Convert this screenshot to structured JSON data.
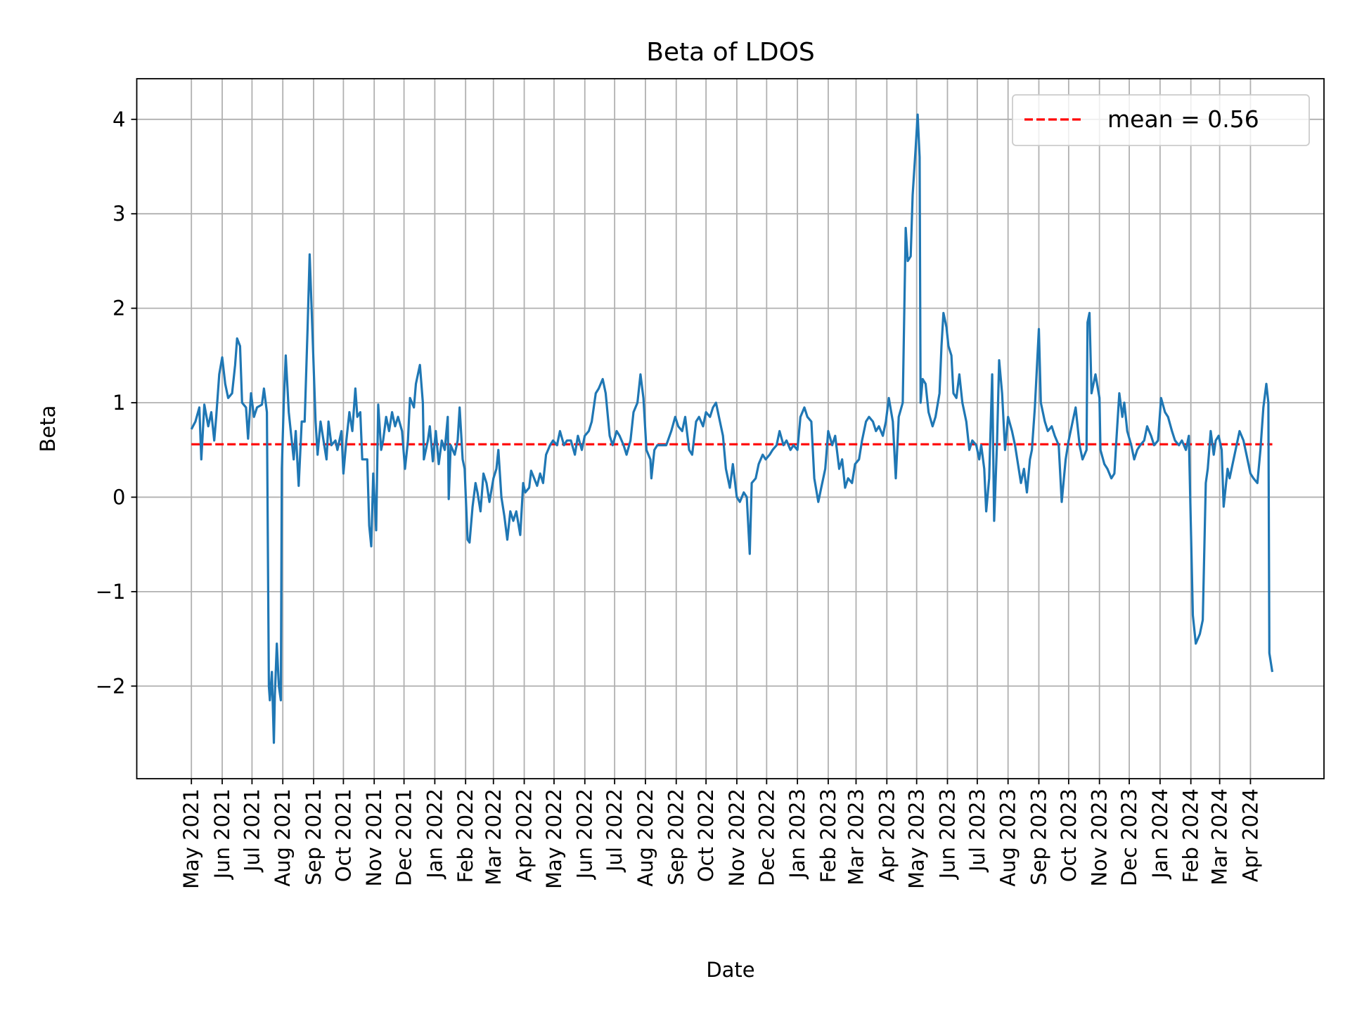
{
  "chart_data": {
    "type": "line",
    "title": "Beta of LDOS",
    "xlabel": "Date",
    "ylabel": "Beta",
    "ylim": [
      -2.98,
      4.43
    ],
    "xlim": [
      "2021-03-07",
      "2024-06-14"
    ],
    "grid": true,
    "legend_placement": "top-right",
    "yticks": [
      -2,
      -1,
      0,
      1,
      2,
      3,
      4
    ],
    "ytick_labels": [
      "−2",
      "−1",
      "0",
      "1",
      "2",
      "3",
      "4"
    ],
    "xtick_labels": [
      "May 2021",
      "Jun 2021",
      "Jul 2021",
      "Aug 2021",
      "Sep 2021",
      "Oct 2021",
      "Nov 2021",
      "Dec 2021",
      "Jan 2022",
      "Feb 2022",
      "Mar 2022",
      "Apr 2022",
      "May 2022",
      "Jun 2022",
      "Jul 2022",
      "Aug 2022",
      "Sep 2022",
      "Oct 2022",
      "Nov 2022",
      "Dec 2022",
      "Jan 2023",
      "Feb 2023",
      "Mar 2023",
      "Apr 2023",
      "May 2023",
      "Jun 2023",
      "Jul 2023",
      "Aug 2023",
      "Sep 2023",
      "Oct 2023",
      "Nov 2023",
      "Dec 2023",
      "Jan 2024",
      "Feb 2024",
      "Mar 2024",
      "Apr 2024"
    ],
    "mean": {
      "value": 0.56,
      "label": "mean = 0.56",
      "color": "#ff0000",
      "style": "dashed"
    },
    "series_color": "#1f77b4",
    "points": [
      [
        "2021-05-01",
        0.72
      ],
      [
        "2021-05-05",
        0.8
      ],
      [
        "2021-05-09",
        0.95
      ],
      [
        "2021-05-11",
        0.4
      ],
      [
        "2021-05-14",
        0.98
      ],
      [
        "2021-05-18",
        0.75
      ],
      [
        "2021-05-21",
        0.9
      ],
      [
        "2021-05-24",
        0.6
      ],
      [
        "2021-05-26",
        0.85
      ],
      [
        "2021-05-29",
        1.3
      ],
      [
        "2021-06-01",
        1.48
      ],
      [
        "2021-06-04",
        1.2
      ],
      [
        "2021-06-07",
        1.05
      ],
      [
        "2021-06-11",
        1.1
      ],
      [
        "2021-06-14",
        1.4
      ],
      [
        "2021-06-16",
        1.68
      ],
      [
        "2021-06-19",
        1.6
      ],
      [
        "2021-06-21",
        1.0
      ],
      [
        "2021-06-25",
        0.95
      ],
      [
        "2021-06-27",
        0.62
      ],
      [
        "2021-06-30",
        1.1
      ],
      [
        "2021-07-03",
        0.85
      ],
      [
        "2021-07-06",
        0.95
      ],
      [
        "2021-07-11",
        0.98
      ],
      [
        "2021-07-13",
        1.15
      ],
      [
        "2021-07-16",
        0.9
      ],
      [
        "2021-07-18",
        -2.0
      ],
      [
        "2021-07-19",
        -2.15
      ],
      [
        "2021-07-21",
        -1.85
      ],
      [
        "2021-07-23",
        -2.6
      ],
      [
        "2021-07-24",
        -2.1
      ],
      [
        "2021-07-26",
        -1.55
      ],
      [
        "2021-07-28",
        -2.0
      ],
      [
        "2021-07-30",
        -2.15
      ],
      [
        "2021-07-31",
        0.3
      ],
      [
        "2021-08-02",
        1.0
      ],
      [
        "2021-08-04",
        1.5
      ],
      [
        "2021-08-07",
        0.9
      ],
      [
        "2021-08-09",
        0.7
      ],
      [
        "2021-08-12",
        0.4
      ],
      [
        "2021-08-14",
        0.7
      ],
      [
        "2021-08-17",
        0.12
      ],
      [
        "2021-08-20",
        0.8
      ],
      [
        "2021-08-23",
        0.8
      ],
      [
        "2021-08-26",
        1.8
      ],
      [
        "2021-08-28",
        2.57
      ],
      [
        "2021-08-31",
        1.7
      ],
      [
        "2021-09-03",
        0.8
      ],
      [
        "2021-09-05",
        0.45
      ],
      [
        "2021-09-08",
        0.8
      ],
      [
        "2021-09-11",
        0.6
      ],
      [
        "2021-09-14",
        0.4
      ],
      [
        "2021-09-16",
        0.8
      ],
      [
        "2021-09-19",
        0.55
      ],
      [
        "2021-09-23",
        0.6
      ],
      [
        "2021-09-25",
        0.5
      ],
      [
        "2021-09-29",
        0.7
      ],
      [
        "2021-10-01",
        0.25
      ],
      [
        "2021-10-04",
        0.6
      ],
      [
        "2021-10-07",
        0.9
      ],
      [
        "2021-10-10",
        0.7
      ],
      [
        "2021-10-13",
        1.15
      ],
      [
        "2021-10-15",
        0.85
      ],
      [
        "2021-10-18",
        0.9
      ],
      [
        "2021-10-20",
        0.4
      ],
      [
        "2021-10-25",
        0.4
      ],
      [
        "2021-10-27",
        -0.3
      ],
      [
        "2021-10-29",
        -0.52
      ],
      [
        "2021-10-31",
        0.25
      ],
      [
        "2021-11-03",
        -0.35
      ],
      [
        "2021-11-05",
        0.98
      ],
      [
        "2021-11-08",
        0.5
      ],
      [
        "2021-11-10",
        0.6
      ],
      [
        "2021-11-13",
        0.85
      ],
      [
        "2021-11-16",
        0.7
      ],
      [
        "2021-11-19",
        0.9
      ],
      [
        "2021-11-22",
        0.75
      ],
      [
        "2021-11-25",
        0.85
      ],
      [
        "2021-11-29",
        0.7
      ],
      [
        "2021-12-02",
        0.3
      ],
      [
        "2021-12-05",
        0.6
      ],
      [
        "2021-12-07",
        1.05
      ],
      [
        "2021-12-11",
        0.95
      ],
      [
        "2021-12-13",
        1.2
      ],
      [
        "2021-12-17",
        1.4
      ],
      [
        "2021-12-20",
        1.0
      ],
      [
        "2021-12-21",
        0.4
      ],
      [
        "2021-12-25",
        0.6
      ],
      [
        "2021-12-27",
        0.75
      ],
      [
        "2021-12-30",
        0.38
      ],
      [
        "2022-01-02",
        0.7
      ],
      [
        "2022-01-05",
        0.35
      ],
      [
        "2022-01-08",
        0.6
      ],
      [
        "2022-01-11",
        0.5
      ],
      [
        "2022-01-14",
        0.85
      ],
      [
        "2022-01-15",
        -0.02
      ],
      [
        "2022-01-17",
        0.55
      ],
      [
        "2022-01-21",
        0.45
      ],
      [
        "2022-01-24",
        0.6
      ],
      [
        "2022-01-26",
        0.95
      ],
      [
        "2022-01-29",
        0.4
      ],
      [
        "2022-01-31",
        0.3
      ],
      [
        "2022-02-03",
        -0.45
      ],
      [
        "2022-02-05",
        -0.48
      ],
      [
        "2022-02-08",
        -0.1
      ],
      [
        "2022-02-11",
        0.15
      ],
      [
        "2022-02-13",
        0.05
      ],
      [
        "2022-02-16",
        -0.15
      ],
      [
        "2022-02-19",
        0.25
      ],
      [
        "2022-02-22",
        0.15
      ],
      [
        "2022-02-25",
        -0.05
      ],
      [
        "2022-03-01",
        0.2
      ],
      [
        "2022-03-04",
        0.3
      ],
      [
        "2022-03-06",
        0.5
      ],
      [
        "2022-03-09",
        0.0
      ],
      [
        "2022-03-12",
        -0.2
      ],
      [
        "2022-03-15",
        -0.45
      ],
      [
        "2022-03-18",
        -0.15
      ],
      [
        "2022-03-21",
        -0.25
      ],
      [
        "2022-03-24",
        -0.15
      ],
      [
        "2022-03-28",
        -0.4
      ],
      [
        "2022-03-31",
        0.15
      ],
      [
        "2022-04-02",
        0.05
      ],
      [
        "2022-04-06",
        0.1
      ],
      [
        "2022-04-08",
        0.28
      ],
      [
        "2022-04-11",
        0.2
      ],
      [
        "2022-04-14",
        0.12
      ],
      [
        "2022-04-17",
        0.25
      ],
      [
        "2022-04-20",
        0.15
      ],
      [
        "2022-04-23",
        0.45
      ],
      [
        "2022-04-27",
        0.55
      ],
      [
        "2022-04-30",
        0.6
      ],
      [
        "2022-05-04",
        0.55
      ],
      [
        "2022-05-07",
        0.7
      ],
      [
        "2022-05-11",
        0.55
      ],
      [
        "2022-05-14",
        0.6
      ],
      [
        "2022-05-18",
        0.6
      ],
      [
        "2022-05-22",
        0.45
      ],
      [
        "2022-05-25",
        0.65
      ],
      [
        "2022-05-29",
        0.5
      ],
      [
        "2022-06-01",
        0.65
      ],
      [
        "2022-06-05",
        0.7
      ],
      [
        "2022-06-08",
        0.8
      ],
      [
        "2022-06-12",
        1.1
      ],
      [
        "2022-06-15",
        1.15
      ],
      [
        "2022-06-19",
        1.25
      ],
      [
        "2022-06-22",
        1.1
      ],
      [
        "2022-06-26",
        0.65
      ],
      [
        "2022-06-29",
        0.55
      ],
      [
        "2022-07-03",
        0.7
      ],
      [
        "2022-07-06",
        0.65
      ],
      [
        "2022-07-10",
        0.55
      ],
      [
        "2022-07-13",
        0.45
      ],
      [
        "2022-07-17",
        0.6
      ],
      [
        "2022-07-20",
        0.9
      ],
      [
        "2022-07-24",
        1.0
      ],
      [
        "2022-07-27",
        1.3
      ],
      [
        "2022-07-30",
        1.05
      ],
      [
        "2022-08-02",
        0.5
      ],
      [
        "2022-08-06",
        0.4
      ],
      [
        "2022-08-07",
        0.2
      ],
      [
        "2022-08-10",
        0.5
      ],
      [
        "2022-08-13",
        0.55
      ],
      [
        "2022-08-18",
        0.55
      ],
      [
        "2022-08-22",
        0.55
      ],
      [
        "2022-08-27",
        0.7
      ],
      [
        "2022-08-31",
        0.85
      ],
      [
        "2022-09-03",
        0.75
      ],
      [
        "2022-09-07",
        0.7
      ],
      [
        "2022-09-10",
        0.85
      ],
      [
        "2022-09-14",
        0.5
      ],
      [
        "2022-09-17",
        0.45
      ],
      [
        "2022-09-21",
        0.8
      ],
      [
        "2022-09-24",
        0.85
      ],
      [
        "2022-09-28",
        0.75
      ],
      [
        "2022-10-01",
        0.9
      ],
      [
        "2022-10-05",
        0.85
      ],
      [
        "2022-10-08",
        0.95
      ],
      [
        "2022-10-11",
        1.0
      ],
      [
        "2022-10-14",
        0.85
      ],
      [
        "2022-10-18",
        0.65
      ],
      [
        "2022-10-21",
        0.3
      ],
      [
        "2022-10-25",
        0.1
      ],
      [
        "2022-10-28",
        0.35
      ],
      [
        "2022-11-01",
        0.0
      ],
      [
        "2022-11-04",
        -0.05
      ],
      [
        "2022-11-08",
        0.05
      ],
      [
        "2022-11-11",
        0.0
      ],
      [
        "2022-11-14",
        -0.6
      ],
      [
        "2022-11-16",
        0.15
      ],
      [
        "2022-11-20",
        0.2
      ],
      [
        "2022-11-23",
        0.35
      ],
      [
        "2022-11-27",
        0.45
      ],
      [
        "2022-11-30",
        0.4
      ],
      [
        "2022-12-04",
        0.45
      ],
      [
        "2022-12-07",
        0.5
      ],
      [
        "2022-12-11",
        0.55
      ],
      [
        "2022-12-14",
        0.7
      ],
      [
        "2022-12-18",
        0.55
      ],
      [
        "2022-12-21",
        0.6
      ],
      [
        "2022-12-25",
        0.5
      ],
      [
        "2022-12-28",
        0.55
      ],
      [
        "2023-01-01",
        0.5
      ],
      [
        "2023-01-04",
        0.85
      ],
      [
        "2023-01-08",
        0.95
      ],
      [
        "2023-01-11",
        0.85
      ],
      [
        "2023-01-15",
        0.8
      ],
      [
        "2023-01-18",
        0.2
      ],
      [
        "2023-01-22",
        -0.05
      ],
      [
        "2023-01-25",
        0.1
      ],
      [
        "2023-01-29",
        0.3
      ],
      [
        "2023-02-01",
        0.7
      ],
      [
        "2023-02-05",
        0.55
      ],
      [
        "2023-02-08",
        0.65
      ],
      [
        "2023-02-12",
        0.3
      ],
      [
        "2023-02-15",
        0.4
      ],
      [
        "2023-02-18",
        0.1
      ],
      [
        "2023-02-21",
        0.2
      ],
      [
        "2023-02-25",
        0.15
      ],
      [
        "2023-02-28",
        0.35
      ],
      [
        "2023-03-04",
        0.4
      ],
      [
        "2023-03-07",
        0.6
      ],
      [
        "2023-03-11",
        0.8
      ],
      [
        "2023-03-14",
        0.85
      ],
      [
        "2023-03-18",
        0.8
      ],
      [
        "2023-03-21",
        0.7
      ],
      [
        "2023-03-24",
        0.75
      ],
      [
        "2023-03-28",
        0.65
      ],
      [
        "2023-03-31",
        0.8
      ],
      [
        "2023-04-03",
        1.05
      ],
      [
        "2023-04-07",
        0.8
      ],
      [
        "2023-04-10",
        0.2
      ],
      [
        "2023-04-13",
        0.85
      ],
      [
        "2023-04-17",
        1.0
      ],
      [
        "2023-04-20",
        2.85
      ],
      [
        "2023-04-22",
        2.5
      ],
      [
        "2023-04-25",
        2.55
      ],
      [
        "2023-04-27",
        3.2
      ],
      [
        "2023-04-30",
        3.7
      ],
      [
        "2023-05-02",
        4.05
      ],
      [
        "2023-05-04",
        3.6
      ],
      [
        "2023-05-05",
        1.0
      ],
      [
        "2023-05-07",
        1.25
      ],
      [
        "2023-05-10",
        1.2
      ],
      [
        "2023-05-13",
        0.9
      ],
      [
        "2023-05-17",
        0.75
      ],
      [
        "2023-05-20",
        0.85
      ],
      [
        "2023-05-24",
        1.1
      ],
      [
        "2023-05-26",
        1.6
      ],
      [
        "2023-05-28",
        1.95
      ],
      [
        "2023-05-31",
        1.8
      ],
      [
        "2023-06-02",
        1.6
      ],
      [
        "2023-06-05",
        1.5
      ],
      [
        "2023-06-07",
        1.1
      ],
      [
        "2023-06-10",
        1.05
      ],
      [
        "2023-06-13",
        1.3
      ],
      [
        "2023-06-16",
        1.0
      ],
      [
        "2023-06-20",
        0.8
      ],
      [
        "2023-06-23",
        0.5
      ],
      [
        "2023-06-26",
        0.6
      ],
      [
        "2023-06-30",
        0.55
      ],
      [
        "2023-07-03",
        0.4
      ],
      [
        "2023-07-05",
        0.55
      ],
      [
        "2023-07-08",
        0.3
      ],
      [
        "2023-07-10",
        -0.15
      ],
      [
        "2023-07-13",
        0.2
      ],
      [
        "2023-07-16",
        1.3
      ],
      [
        "2023-07-18",
        -0.25
      ],
      [
        "2023-07-21",
        0.6
      ],
      [
        "2023-07-23",
        1.45
      ],
      [
        "2023-07-26",
        1.1
      ],
      [
        "2023-07-29",
        0.5
      ],
      [
        "2023-08-01",
        0.85
      ],
      [
        "2023-08-05",
        0.7
      ],
      [
        "2023-08-08",
        0.55
      ],
      [
        "2023-08-11",
        0.35
      ],
      [
        "2023-08-14",
        0.15
      ],
      [
        "2023-08-17",
        0.3
      ],
      [
        "2023-08-20",
        0.05
      ],
      [
        "2023-08-23",
        0.4
      ],
      [
        "2023-08-25",
        0.5
      ],
      [
        "2023-08-28",
        0.95
      ],
      [
        "2023-09-01",
        1.78
      ],
      [
        "2023-09-03",
        1.0
      ],
      [
        "2023-09-07",
        0.8
      ],
      [
        "2023-09-10",
        0.7
      ],
      [
        "2023-09-14",
        0.75
      ],
      [
        "2023-09-17",
        0.65
      ],
      [
        "2023-09-21",
        0.55
      ],
      [
        "2023-09-24",
        -0.05
      ],
      [
        "2023-09-28",
        0.4
      ],
      [
        "2023-10-01",
        0.6
      ],
      [
        "2023-10-05",
        0.8
      ],
      [
        "2023-10-08",
        0.95
      ],
      [
        "2023-10-12",
        0.55
      ],
      [
        "2023-10-15",
        0.4
      ],
      [
        "2023-10-19",
        0.5
      ],
      [
        "2023-10-20",
        1.85
      ],
      [
        "2023-10-22",
        1.95
      ],
      [
        "2023-10-24",
        1.1
      ],
      [
        "2023-10-28",
        1.3
      ],
      [
        "2023-11-01",
        1.05
      ],
      [
        "2023-11-02",
        0.5
      ],
      [
        "2023-11-06",
        0.35
      ],
      [
        "2023-11-09",
        0.3
      ],
      [
        "2023-11-13",
        0.2
      ],
      [
        "2023-11-16",
        0.25
      ],
      [
        "2023-11-18",
        0.6
      ],
      [
        "2023-11-21",
        1.1
      ],
      [
        "2023-11-24",
        0.85
      ],
      [
        "2023-11-26",
        1.0
      ],
      [
        "2023-11-29",
        0.7
      ],
      [
        "2023-12-03",
        0.55
      ],
      [
        "2023-12-06",
        0.4
      ],
      [
        "2023-12-09",
        0.5
      ],
      [
        "2023-12-12",
        0.55
      ],
      [
        "2023-12-16",
        0.6
      ],
      [
        "2023-12-19",
        0.75
      ],
      [
        "2023-12-23",
        0.65
      ],
      [
        "2023-12-26",
        0.55
      ],
      [
        "2023-12-30",
        0.6
      ],
      [
        "2024-01-02",
        1.05
      ],
      [
        "2024-01-06",
        0.9
      ],
      [
        "2024-01-09",
        0.85
      ],
      [
        "2024-01-13",
        0.7
      ],
      [
        "2024-01-16",
        0.6
      ],
      [
        "2024-01-20",
        0.55
      ],
      [
        "2024-01-23",
        0.6
      ],
      [
        "2024-01-27",
        0.5
      ],
      [
        "2024-01-30",
        0.65
      ],
      [
        "2024-02-03",
        -1.25
      ],
      [
        "2024-02-06",
        -1.55
      ],
      [
        "2024-02-10",
        -1.45
      ],
      [
        "2024-02-13",
        -1.3
      ],
      [
        "2024-02-16",
        0.15
      ],
      [
        "2024-02-18",
        0.3
      ],
      [
        "2024-02-21",
        0.7
      ],
      [
        "2024-02-24",
        0.45
      ],
      [
        "2024-02-26",
        0.6
      ],
      [
        "2024-02-29",
        0.65
      ],
      [
        "2024-03-03",
        0.5
      ],
      [
        "2024-03-05",
        -0.1
      ],
      [
        "2024-03-09",
        0.3
      ],
      [
        "2024-03-11",
        0.2
      ],
      [
        "2024-03-14",
        0.35
      ],
      [
        "2024-03-18",
        0.55
      ],
      [
        "2024-03-21",
        0.7
      ],
      [
        "2024-03-25",
        0.6
      ],
      [
        "2024-03-28",
        0.45
      ],
      [
        "2024-04-01",
        0.25
      ],
      [
        "2024-04-04",
        0.2
      ],
      [
        "2024-04-08",
        0.15
      ],
      [
        "2024-04-11",
        0.5
      ],
      [
        "2024-04-14",
        0.95
      ],
      [
        "2024-04-17",
        1.2
      ],
      [
        "2024-04-19",
        1.0
      ],
      [
        "2024-04-20",
        -1.65
      ],
      [
        "2024-04-23",
        -1.85
      ]
    ]
  }
}
